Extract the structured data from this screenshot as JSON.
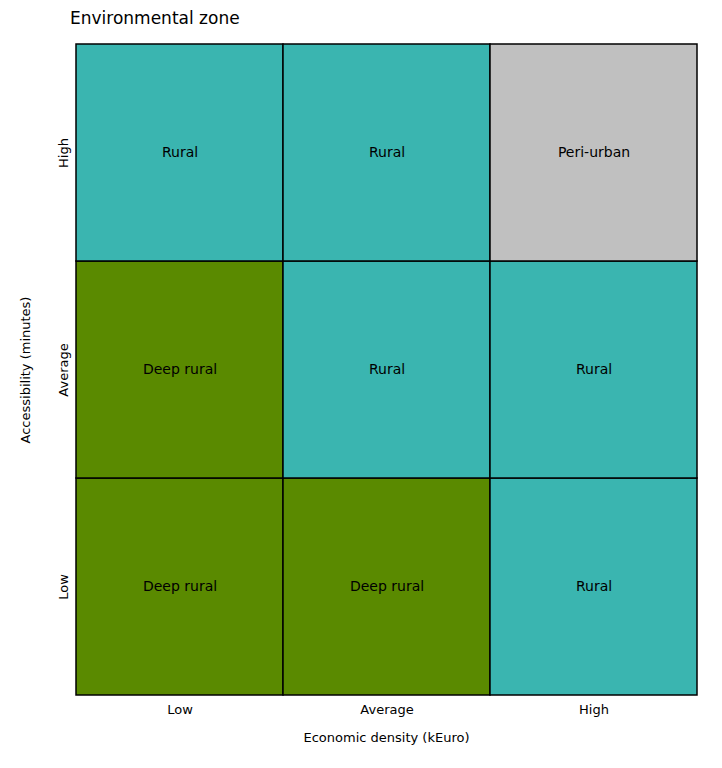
{
  "chart_data": {
    "type": "heatmap",
    "title": "Environmental zone",
    "xlabel": "Economic density (kEuro)",
    "ylabel": "Accessibility (minutes)",
    "x": [
      "Low",
      "Average",
      "High"
    ],
    "y": [
      "Low",
      "Average",
      "High"
    ],
    "cells": [
      [
        {
          "label": "Deep rural",
          "color": "#5a8a00"
        },
        {
          "label": "Deep rural",
          "color": "#5a8a00"
        },
        {
          "label": "Rural",
          "color": "#3ab5b0"
        }
      ],
      [
        {
          "label": "Deep rural",
          "color": "#5a8a00"
        },
        {
          "label": "Rural",
          "color": "#3ab5b0"
        },
        {
          "label": "Rural",
          "color": "#3ab5b0"
        }
      ],
      [
        {
          "label": "Rural",
          "color": "#3ab5b0"
        },
        {
          "label": "Rural",
          "color": "#3ab5b0"
        },
        {
          "label": "Peri-urban",
          "color": "#c0c0c0"
        }
      ]
    ]
  }
}
